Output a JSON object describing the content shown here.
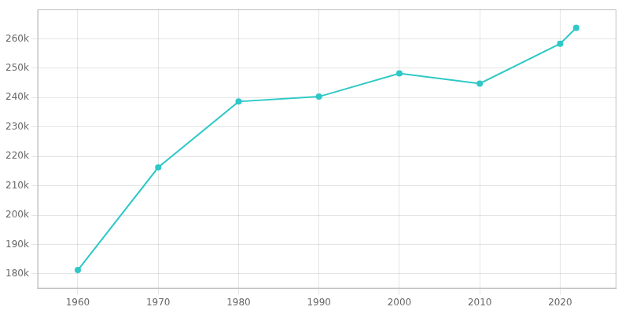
{
  "chart_data": {
    "type": "line",
    "x": [
      1960,
      1970,
      1980,
      1990,
      2000,
      2010,
      2020,
      2022
    ],
    "values": [
      181298,
      216232,
      238647,
      240318,
      248232,
      244769,
      258308,
      263705
    ],
    "color": "#2EC8C8",
    "marker": "circle",
    "xlim": [
      1955,
      2027
    ],
    "xticks": [
      1960,
      1970,
      1980,
      1990,
      2000,
      2010,
      2020
    ],
    "ylim": [
      175000,
      270000
    ],
    "yticks": [
      {
        "value": 180000,
        "label": "180k"
      },
      {
        "value": 190000,
        "label": "190k"
      },
      {
        "value": 200000,
        "label": "200k"
      },
      {
        "value": 210000,
        "label": "210k"
      },
      {
        "value": 220000,
        "label": "220k"
      },
      {
        "value": 230000,
        "label": "230k"
      },
      {
        "value": 240000,
        "label": "240k"
      },
      {
        "value": 250000,
        "label": "250k"
      },
      {
        "value": 260000,
        "label": "260k"
      }
    ],
    "grid": true
  }
}
